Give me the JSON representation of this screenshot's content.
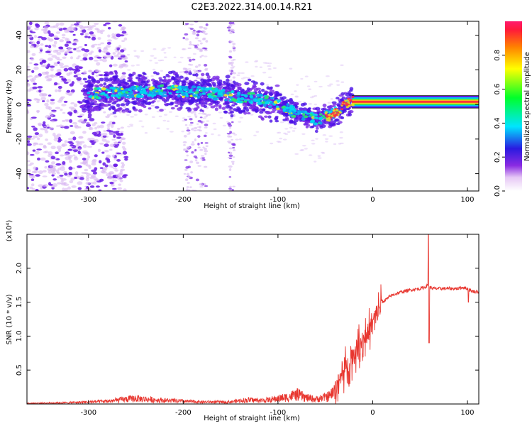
{
  "figure": {
    "title": "C2E3.2022.314.00.14.R21"
  },
  "colors": {
    "snr_line": "#e8362f",
    "frame": "#000000",
    "spectrum_dot": "#6a1ae6"
  },
  "chart_data": [
    {
      "type": "heatmap",
      "title": "C2E3.2022.314.00.14.R21",
      "xlabel": "Height of straight line (km)",
      "ylabel": "Frequency (Hz)",
      "xlim": [
        -365,
        112
      ],
      "ylim": [
        -50,
        48
      ],
      "x_ticks": [
        -300,
        -200,
        -100,
        0,
        100
      ],
      "y_ticks": [
        -40,
        -20,
        0,
        20,
        40
      ],
      "grid": false,
      "colormap": "rainbow",
      "colorbar": {
        "label": "Normalized spectral amplitude",
        "range": [
          0,
          1
        ],
        "ticks": [
          0.0,
          0.2,
          0.4,
          0.6,
          0.8
        ]
      },
      "ridge": {
        "x": [
          -300,
          -260,
          -220,
          -180,
          -150,
          -120,
          -100,
          -80,
          -60,
          -50,
          -40,
          -35,
          -30,
          -25,
          -20,
          0,
          50,
          90,
          112
        ],
        "y": [
          6,
          7,
          8,
          7,
          5,
          3,
          0,
          -5,
          -9,
          -7,
          -5,
          -3,
          0,
          1,
          2,
          2,
          2,
          3,
          2
        ]
      },
      "continuous_band": {
        "x_range": [
          -22,
          112
        ],
        "center": 1.5,
        "half_width": 2
      }
    },
    {
      "type": "line",
      "xlabel": "Height of straight line (km)",
      "ylabel": "SNR (10 * v/v)",
      "y_multiplier": "(x10⁴)",
      "xlim": [
        -365,
        112
      ],
      "ylim": [
        0,
        2.5
      ],
      "x_ticks": [
        -300,
        -200,
        -100,
        0,
        100
      ],
      "y_ticks": [
        0.5,
        1.0,
        1.5,
        2.0
      ],
      "grid": false,
      "series": [
        {
          "x": [
            -365,
            -320,
            -280,
            -260,
            -250,
            -230,
            -200,
            -180,
            -150,
            -140,
            -130,
            -120,
            -110,
            -100,
            -90,
            -80,
            -70,
            -60,
            -50,
            -45,
            -40,
            -35,
            -30,
            -25,
            -20,
            -15,
            -10,
            -5,
            0,
            5,
            10,
            20,
            30,
            40,
            50,
            55,
            58,
            60,
            65,
            70,
            80,
            90,
            95,
            100,
            105,
            112
          ],
          "y": [
            0.01,
            0.02,
            0.04,
            0.07,
            0.08,
            0.06,
            0.04,
            0.03,
            0.03,
            0.05,
            0.06,
            0.05,
            0.06,
            0.08,
            0.1,
            0.14,
            0.09,
            0.07,
            0.1,
            0.12,
            0.2,
            0.35,
            0.5,
            0.6,
            0.75,
            0.85,
            0.95,
            1.05,
            1.2,
            1.35,
            1.5,
            1.6,
            1.65,
            1.68,
            1.7,
            1.72,
            1.75,
            1.72,
            1.7,
            1.7,
            1.7,
            1.7,
            1.72,
            1.7,
            1.66,
            1.65
          ]
        }
      ],
      "annotations": [
        {
          "x": 59,
          "y": 2.5,
          "note": "spike"
        },
        {
          "x": 59,
          "y": 0.9,
          "note": "dip"
        }
      ]
    }
  ]
}
